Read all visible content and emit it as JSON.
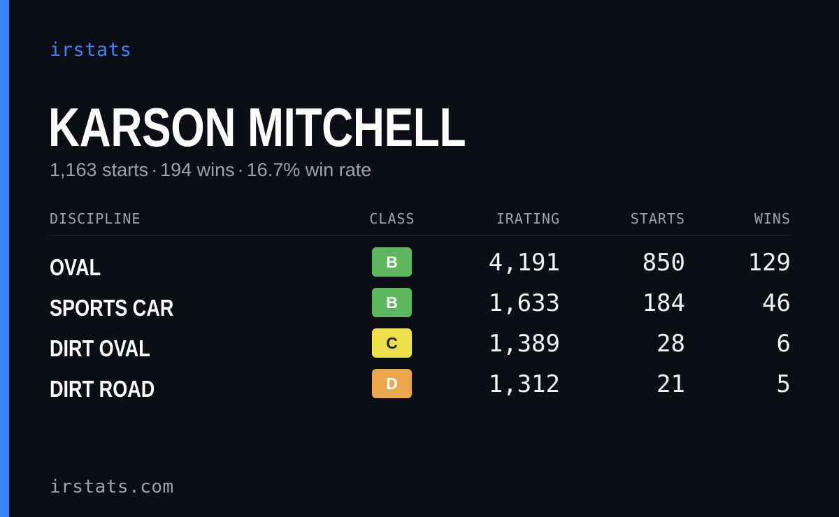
{
  "brand": "irstats",
  "accent_color": "#3b82f6",
  "player": {
    "name": "KARSON MITCHELL",
    "starts_text": "1,163 starts",
    "wins_text": "194 wins",
    "win_rate_text": "16.7% win rate",
    "separator": "·"
  },
  "table": {
    "headers": {
      "discipline": "DISCIPLINE",
      "class": "CLASS",
      "irating": "IRATING",
      "starts": "STARTS",
      "wins": "WINS"
    },
    "rows": [
      {
        "discipline": "OVAL",
        "class": "B",
        "class_color": "#5cb85c",
        "irating": "4,191",
        "starts": "850",
        "wins": "129"
      },
      {
        "discipline": "SPORTS CAR",
        "class": "B",
        "class_color": "#5cb85c",
        "irating": "1,633",
        "starts": "184",
        "wins": "46"
      },
      {
        "discipline": "DIRT OVAL",
        "class": "C",
        "class_color": "#ede04a",
        "irating": "1,389",
        "starts": "28",
        "wins": "6"
      },
      {
        "discipline": "DIRT ROAD",
        "class": "D",
        "class_color": "#eaa84a",
        "irating": "1,312",
        "starts": "21",
        "wins": "5"
      }
    ]
  },
  "footer": "irstats.com"
}
